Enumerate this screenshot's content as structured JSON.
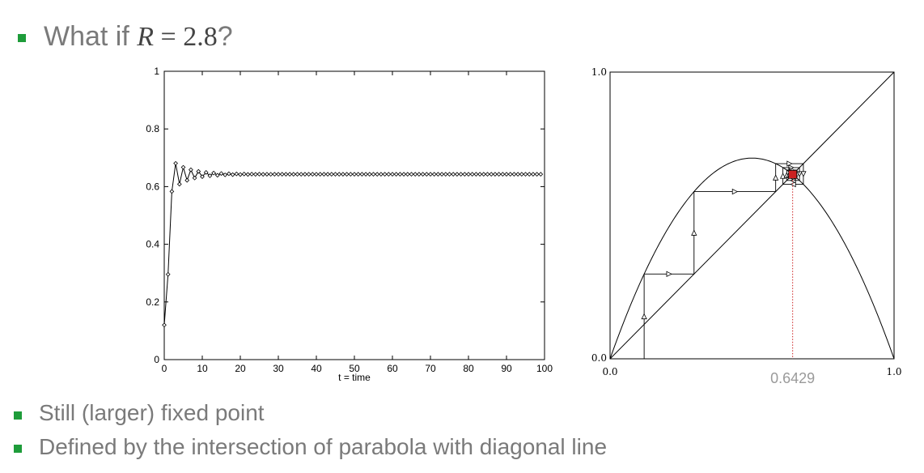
{
  "slide": {
    "title_prefix": "What if ",
    "title_var": "R",
    "title_eq": " = 2.8",
    "title_suffix": "?",
    "bullets": [
      "Still (larger) fixed point",
      "Defined by the intersection of parabola with diagonal line"
    ],
    "bullet_color": "#1e9c3a"
  },
  "chart_data": [
    {
      "type": "line",
      "name": "time-series",
      "xlabel": "t = time",
      "ylabel": "",
      "xlim": [
        0,
        100
      ],
      "ylim": [
        0,
        1
      ],
      "x_ticks": [
        "0",
        "10",
        "20",
        "30",
        "40",
        "50",
        "60",
        "70",
        "80",
        "90",
        "100"
      ],
      "y_ticks": [
        "0",
        "0.2",
        "0.4",
        "0.6",
        "0.8",
        "1"
      ],
      "R": 2.8,
      "x0": 0.12,
      "n_points": 100,
      "marker": "diamond",
      "grid": false
    },
    {
      "type": "line",
      "name": "cobweb",
      "xlim": [
        0,
        1
      ],
      "ylim": [
        0,
        1
      ],
      "x_ticks": [
        "0.0",
        "1.0"
      ],
      "y_ticks": [
        "0.0",
        "1.0"
      ],
      "R": 2.8,
      "x0": 0.12,
      "fixed_point": 0.6429,
      "fixed_point_label": "0.6429",
      "fixed_point_color": "#cc2222"
    }
  ]
}
